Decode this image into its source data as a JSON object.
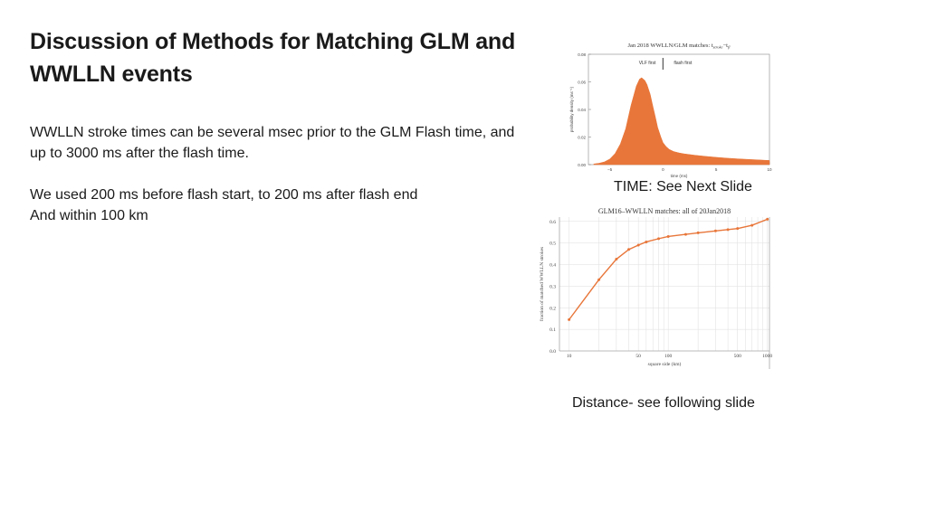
{
  "slide": {
    "title_line1": "Discussion of Methods for Matching GLM and",
    "title_line2": "WWLLN events",
    "para1_line1": "WWLLN stroke times can be several msec prior to the GLM Flash time, and",
    "para1_line2": "up to 3000 ms after the flash time.",
    "para2_line1": "We used 200 ms before flash start, to 200 ms after flash end",
    "para2_line2": "And within 100 km",
    "caption_time": "TIME:  See Next Slide",
    "caption_distance": "Distance- see following slide"
  },
  "chart_data": [
    {
      "type": "area",
      "title": "Jan 2018 WWLLN/GLM matches: t",
      "title_sub": "stroke",
      "title_suffix": "−t",
      "title_sub2": "fl",
      "xlabel": "time (ms)",
      "ylabel": "probability density (ms⁻¹)",
      "xlim": [
        -7,
        10
      ],
      "ylim": [
        0,
        0.08
      ],
      "xticks": [
        "−5",
        "0",
        "5",
        "10"
      ],
      "yticks": [
        "0.00",
        "0.02",
        "0.04",
        "0.06",
        "0.08"
      ],
      "annotations": [
        "VLF first",
        "flash first"
      ],
      "color": "#e8763a",
      "x": [
        -6.5,
        -6,
        -5.5,
        -5,
        -4.5,
        -4,
        -3.5,
        -3,
        -2.5,
        -2.2,
        -2,
        -1.7,
        -1.5,
        -1.2,
        -1,
        -0.7,
        -0.5,
        -0.2,
        0,
        0.3,
        0.6,
        1,
        1.5,
        2,
        3,
        4,
        5,
        6,
        7,
        8,
        9,
        10
      ],
      "y": [
        0.0005,
        0.001,
        0.002,
        0.004,
        0.008,
        0.015,
        0.026,
        0.043,
        0.057,
        0.062,
        0.063,
        0.061,
        0.058,
        0.051,
        0.044,
        0.034,
        0.027,
        0.02,
        0.016,
        0.013,
        0.011,
        0.0095,
        0.0085,
        0.0078,
        0.0068,
        0.006,
        0.0053,
        0.0047,
        0.0042,
        0.0038,
        0.0034,
        0.003
      ]
    },
    {
      "type": "line",
      "title": "GLM16–WWLLN matches: all of 20Jan2018",
      "xlabel": "square side (km)",
      "ylabel": "fraction of matched WWLLN strokes",
      "xscale": "log",
      "xlim": [
        8,
        1050
      ],
      "ylim": [
        0,
        0.62
      ],
      "xticks": [
        "10",
        "50",
        "100",
        "500",
        "1000"
      ],
      "yticks": [
        "0.0",
        "0.1",
        "0.2",
        "0.3",
        "0.4",
        "0.5",
        "0.6"
      ],
      "color": "#e8763a",
      "x": [
        10,
        20,
        30,
        40,
        50,
        60,
        80,
        100,
        150,
        200,
        300,
        400,
        500,
        700,
        1000
      ],
      "y": [
        0.145,
        0.33,
        0.425,
        0.47,
        0.49,
        0.505,
        0.52,
        0.53,
        0.54,
        0.547,
        0.556,
        0.562,
        0.567,
        0.582,
        0.61
      ]
    }
  ]
}
